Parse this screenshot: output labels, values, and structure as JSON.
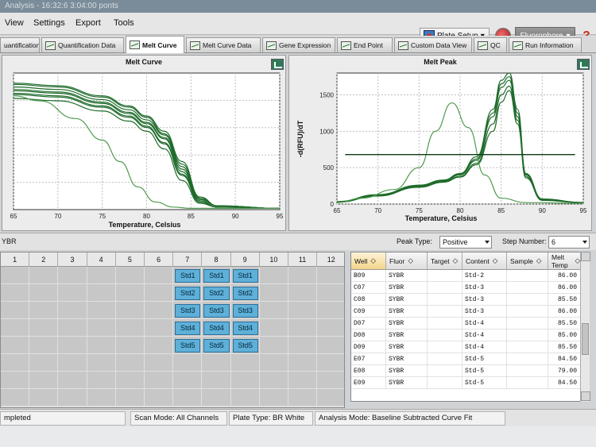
{
  "window": {
    "title": "Analysis - 16:32:6 3:04:00 ponts"
  },
  "menu": {
    "items": [
      "View",
      "Settings",
      "Export",
      "Tools"
    ]
  },
  "toolbar": {
    "plate_setup_label": "Plate Setup",
    "fluorophore_label": "Fluorophore",
    "help_label": "?"
  },
  "tabs": [
    {
      "label": "uantification"
    },
    {
      "label": "Quantification Data"
    },
    {
      "label": "Melt Curve"
    },
    {
      "label": "Melt Curve Data"
    },
    {
      "label": "Gene Expression"
    },
    {
      "label": "End Point"
    },
    {
      "label": "Custom Data View"
    },
    {
      "label": "QC"
    },
    {
      "label": "Run Information"
    }
  ],
  "melt_curve_panel": {
    "title": "Melt Curve"
  },
  "melt_peak_panel": {
    "title": "Melt Peak"
  },
  "chart_data": [
    {
      "type": "line",
      "title": "Melt Curve",
      "xlabel": "Temperature, Celsius",
      "ylabel": "",
      "xlim": [
        65,
        95
      ],
      "x_ticks": [
        65,
        70,
        75,
        80,
        85,
        90,
        95
      ],
      "y_ticks": [],
      "grid": true,
      "series": [
        {
          "x": [
            65,
            70,
            75,
            78,
            80,
            82,
            84,
            86,
            88,
            95
          ],
          "values": [
            1.0,
            0.98,
            0.9,
            0.82,
            0.74,
            0.62,
            0.38,
            0.1,
            0.03,
            0.01
          ]
        },
        {
          "x": [
            65,
            70,
            75,
            78,
            80,
            82,
            84,
            86,
            88,
            95
          ],
          "values": [
            0.97,
            0.95,
            0.87,
            0.79,
            0.71,
            0.59,
            0.34,
            0.08,
            0.03,
            0.01
          ]
        },
        {
          "x": [
            65,
            70,
            75,
            78,
            80,
            82,
            84,
            86,
            88,
            95
          ],
          "values": [
            0.94,
            0.92,
            0.84,
            0.76,
            0.68,
            0.56,
            0.3,
            0.07,
            0.02,
            0.01
          ]
        },
        {
          "x": [
            65,
            70,
            75,
            78,
            80,
            82,
            84,
            86,
            88,
            95
          ],
          "values": [
            0.91,
            0.89,
            0.81,
            0.73,
            0.65,
            0.52,
            0.27,
            0.06,
            0.02,
            0.01
          ]
        },
        {
          "x": [
            65,
            70,
            75,
            78,
            80,
            82,
            84,
            86,
            88,
            95
          ],
          "values": [
            0.88,
            0.86,
            0.78,
            0.7,
            0.62,
            0.48,
            0.23,
            0.05,
            0.02,
            0.01
          ]
        },
        {
          "x": [
            65,
            70,
            75,
            78,
            80,
            82,
            84,
            86,
            88,
            95
          ],
          "values": [
            0.99,
            0.97,
            0.89,
            0.81,
            0.73,
            0.6,
            0.36,
            0.09,
            0.03,
            0.01
          ]
        },
        {
          "x": [
            65,
            70,
            75,
            78,
            80,
            82,
            84,
            86,
            88,
            95
          ],
          "values": [
            0.95,
            0.93,
            0.85,
            0.77,
            0.69,
            0.57,
            0.32,
            0.08,
            0.03,
            0.01
          ]
        },
        {
          "x": [
            65,
            70,
            75,
            78,
            80,
            82,
            84,
            86,
            88,
            95
          ],
          "values": [
            0.92,
            0.9,
            0.82,
            0.74,
            0.66,
            0.53,
            0.28,
            0.06,
            0.02,
            0.01
          ]
        },
        {
          "x": [
            65,
            68,
            72,
            75,
            77,
            79,
            81,
            83,
            85,
            95
          ],
          "values": [
            0.9,
            0.86,
            0.72,
            0.55,
            0.38,
            0.18,
            0.06,
            0.02,
            0.01,
            0.01
          ]
        }
      ]
    },
    {
      "type": "line",
      "title": "Melt Peak",
      "xlabel": "Temperature, Celsius",
      "ylabel": "-d(RFU)/dT",
      "xlim": [
        65,
        95
      ],
      "ylim": [
        0,
        1800
      ],
      "x_ticks": [
        65,
        70,
        75,
        80,
        85,
        90,
        95
      ],
      "y_ticks": [
        0,
        500,
        1000,
        1500
      ],
      "grid": true,
      "threshold": 680,
      "series": [
        {
          "x": [
            65,
            70,
            75,
            78,
            80,
            82,
            84,
            85,
            86,
            87,
            88,
            90,
            95
          ],
          "values": [
            30,
            120,
            250,
            320,
            400,
            600,
            1200,
            1600,
            1700,
            1200,
            400,
            60,
            20
          ]
        },
        {
          "x": [
            65,
            70,
            75,
            78,
            80,
            82,
            84,
            85,
            86,
            87,
            88,
            90,
            95
          ],
          "values": [
            25,
            110,
            240,
            310,
            380,
            560,
            1100,
            1500,
            1620,
            1150,
            380,
            55,
            18
          ]
        },
        {
          "x": [
            65,
            70,
            75,
            78,
            80,
            82,
            84,
            85,
            86,
            87,
            88,
            90,
            95
          ],
          "values": [
            35,
            130,
            260,
            330,
            420,
            650,
            1300,
            1700,
            1800,
            1300,
            420,
            70,
            22
          ]
        },
        {
          "x": [
            65,
            70,
            75,
            78,
            80,
            82,
            84,
            85,
            86,
            87,
            88,
            90,
            95
          ],
          "values": [
            28,
            115,
            230,
            300,
            370,
            540,
            1000,
            1400,
            1560,
            1100,
            360,
            50,
            18
          ]
        },
        {
          "x": [
            65,
            70,
            75,
            78,
            80,
            82,
            84,
            85,
            86,
            87,
            88,
            90,
            95
          ],
          "values": [
            32,
            125,
            255,
            325,
            410,
            620,
            1250,
            1650,
            1750,
            1250,
            410,
            65,
            20
          ]
        },
        {
          "x": [
            65,
            68,
            72,
            75,
            77,
            79,
            81,
            83,
            85,
            88,
            95
          ],
          "values": [
            20,
            80,
            200,
            500,
            1000,
            1390,
            1050,
            400,
            80,
            20,
            10
          ]
        }
      ]
    }
  ],
  "controls": {
    "left_label": "YBR",
    "peak_type_label": "Peak Type:",
    "peak_type_value": "Positive",
    "step_number_label": "Step Number:",
    "step_number_value": "6"
  },
  "plate": {
    "columns": [
      "1",
      "2",
      "3",
      "4",
      "5",
      "6",
      "7",
      "8",
      "9",
      "10",
      "11",
      "12"
    ],
    "wells": [
      {
        "row": 0,
        "col": 6,
        "label": "Std1"
      },
      {
        "row": 0,
        "col": 7,
        "label": "Std1"
      },
      {
        "row": 0,
        "col": 8,
        "label": "Std1"
      },
      {
        "row": 1,
        "col": 6,
        "label": "Std2"
      },
      {
        "row": 1,
        "col": 7,
        "label": "Std2"
      },
      {
        "row": 1,
        "col": 8,
        "label": "Std2"
      },
      {
        "row": 2,
        "col": 6,
        "label": "Std3"
      },
      {
        "row": 2,
        "col": 7,
        "label": "Std3"
      },
      {
        "row": 2,
        "col": 8,
        "label": "Std3"
      },
      {
        "row": 3,
        "col": 6,
        "label": "Std4"
      },
      {
        "row": 3,
        "col": 7,
        "label": "Std4"
      },
      {
        "row": 3,
        "col": 8,
        "label": "Std4"
      },
      {
        "row": 4,
        "col": 6,
        "label": "Std5"
      },
      {
        "row": 4,
        "col": 7,
        "label": "Std5"
      },
      {
        "row": 4,
        "col": 8,
        "label": "Std5"
      }
    ]
  },
  "well_table": {
    "headers": [
      "Well",
      "Fluor",
      "Target",
      "Content",
      "Sample",
      "Melt Temp"
    ],
    "rows": [
      [
        "B09",
        "SYBR",
        "",
        "Std-2",
        "",
        "86.00"
      ],
      [
        "C07",
        "SYBR",
        "",
        "Std-3",
        "",
        "86.00"
      ],
      [
        "C08",
        "SYBR",
        "",
        "Std-3",
        "",
        "85.50"
      ],
      [
        "C09",
        "SYBR",
        "",
        "Std-3",
        "",
        "86.00"
      ],
      [
        "D07",
        "SYBR",
        "",
        "Std-4",
        "",
        "85.50"
      ],
      [
        "D08",
        "SYBR",
        "",
        "Std-4",
        "",
        "85.00"
      ],
      [
        "D09",
        "SYBR",
        "",
        "Std-4",
        "",
        "85.50"
      ],
      [
        "E07",
        "SYBR",
        "",
        "Std-5",
        "",
        "84.50"
      ],
      [
        "E08",
        "SYBR",
        "",
        "Std-5",
        "",
        "79.00"
      ],
      [
        "E09",
        "SYBR",
        "",
        "Std-5",
        "",
        "84.50"
      ]
    ]
  },
  "status": {
    "left": "mpleted",
    "scan_mode": "Scan Mode: All Channels",
    "plate_type": "Plate Type: BR White",
    "analysis_mode": "Analysis Mode: Baseline Subtracted Curve Fit"
  },
  "colors": {
    "curve": "#1e6b2b",
    "curve_light": "#4f9a4f",
    "threshold": "#0f3a17",
    "well_fill": "#5eb0d8"
  }
}
